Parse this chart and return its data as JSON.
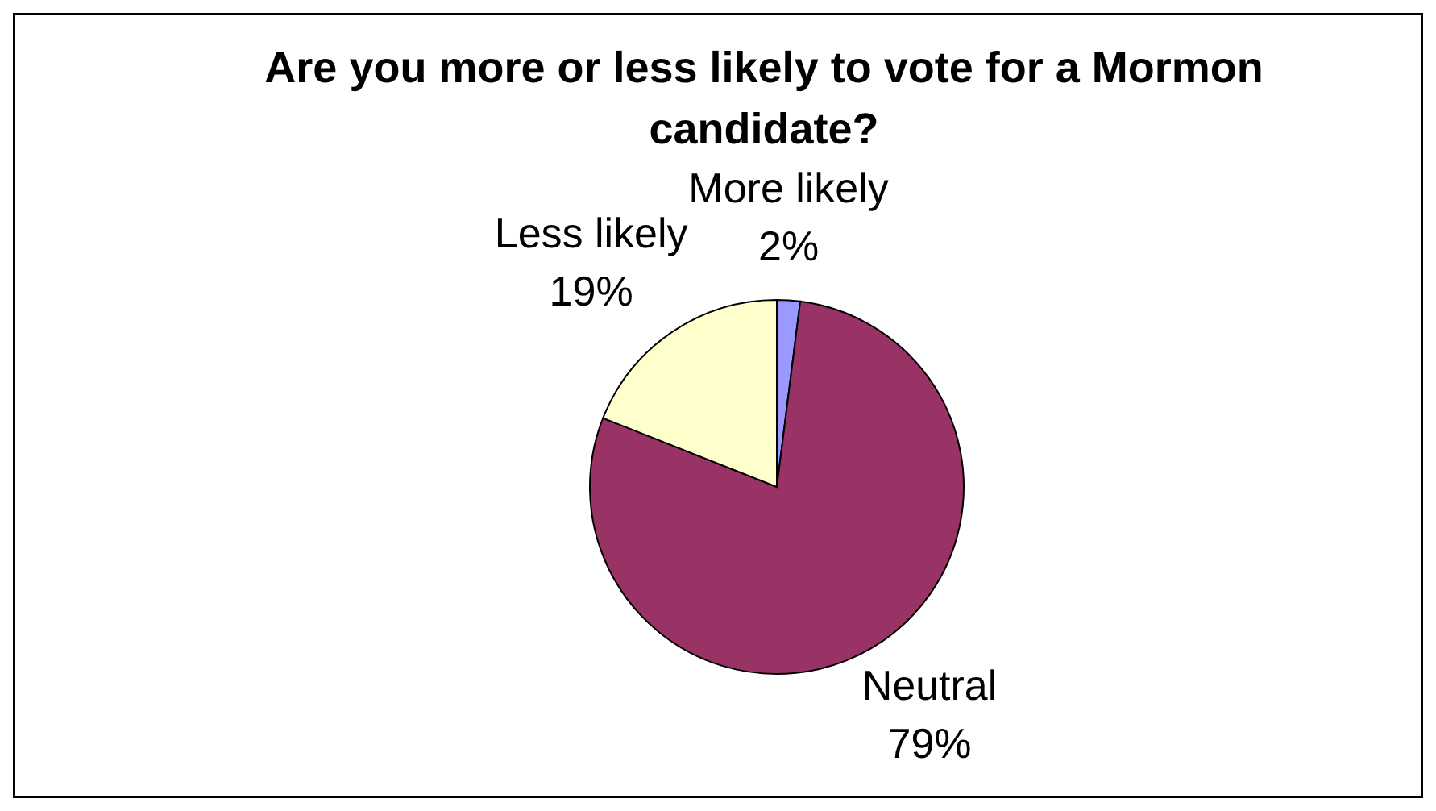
{
  "chart_data": {
    "type": "pie",
    "title": "Are you more or less likely to vote for a Mormon candidate?",
    "categories": [
      "More likely",
      "Neutral",
      "Less likely"
    ],
    "values": [
      2,
      79,
      19
    ],
    "colors": [
      "#9999ff",
      "#993366",
      "#ffffcc"
    ],
    "value_labels": [
      "2%",
      "79%",
      "19%"
    ]
  }
}
